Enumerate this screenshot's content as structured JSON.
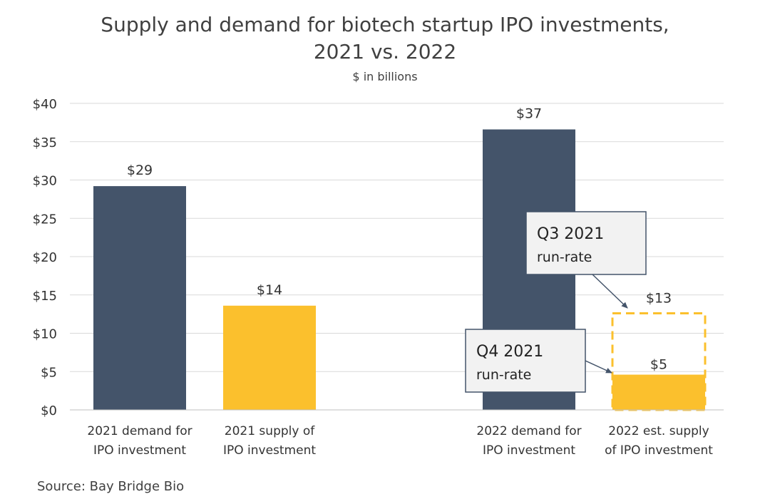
{
  "chart_data": {
    "type": "bar",
    "title": "Supply and demand for biotech startup IPO investments,",
    "title_line2": "2021 vs. 2022",
    "subtitle": "$ in billions",
    "ylim": [
      0,
      40
    ],
    "yticks": [
      0,
      5,
      10,
      15,
      20,
      25,
      30,
      35,
      40
    ],
    "ytick_labels": [
      "$0",
      "$5",
      "$10",
      "$15",
      "$20",
      "$25",
      "$30",
      "$35",
      "$40"
    ],
    "grid": true,
    "bars": [
      {
        "label_line1": "2021 demand for",
        "label_line2": "IPO investment",
        "value": 29.2,
        "value_label": "$29",
        "color": "#44546a"
      },
      {
        "label_line1": "2021 supply of",
        "label_line2": "IPO investment",
        "value": 13.6,
        "value_label": "$14",
        "color": "#fbc02d"
      },
      {
        "label_line1": "2022 demand for",
        "label_line2": "IPO investment",
        "value": 36.6,
        "value_label": "$37",
        "color": "#44546a"
      },
      {
        "label_line1": "2022 est. supply",
        "label_line2": "of IPO investment",
        "value": 4.6,
        "value_label": "$5",
        "color": "#fbc02d",
        "dashed_value": 12.6,
        "dashed_label": "$13"
      }
    ],
    "annotations": [
      {
        "line1": "Q3 2021",
        "line2": "run-rate",
        "points_to": "dashed"
      },
      {
        "line1": "Q4 2021",
        "line2": "run-rate",
        "points_to": "solid"
      }
    ]
  },
  "source": "Source: Bay Bridge Bio"
}
